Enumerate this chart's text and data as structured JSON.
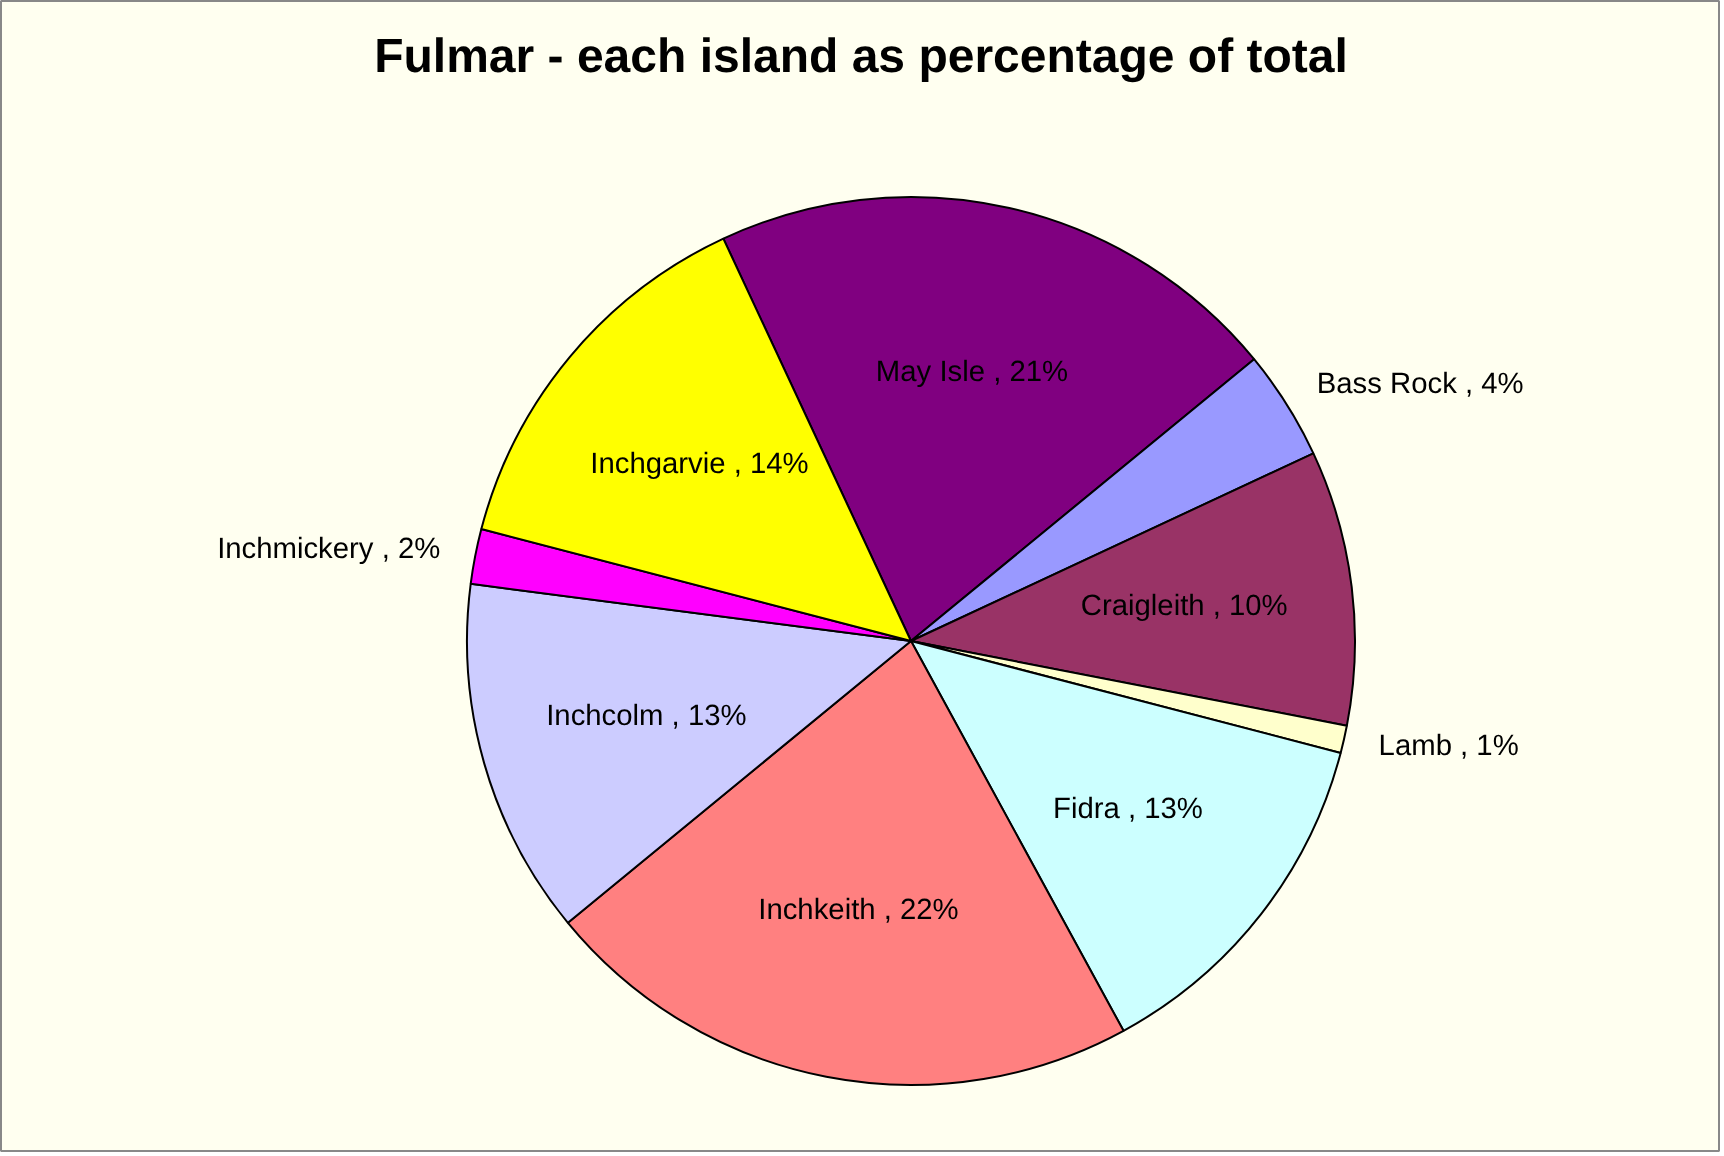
{
  "chart_data": {
    "type": "pie",
    "title": "Fulmar - each island as percentage of total",
    "categories": [
      "May Isle",
      "Bass Rock",
      "Craigleith",
      "Lamb",
      "Fidra",
      "Inchkeith",
      "Inchcolm",
      "Inchmickery",
      "Inchgarvie"
    ],
    "values": [
      21,
      4,
      10,
      1,
      13,
      22,
      13,
      2,
      14
    ],
    "colors": [
      "#800080",
      "#9999ff",
      "#993366",
      "#ffffcc",
      "#ccffff",
      "#ff8080",
      "#ccccff",
      "#ff00ff",
      "#ffff00"
    ],
    "value_labels": [
      "21%",
      "4%",
      "10%",
      "1%",
      "13%",
      "22%",
      "13%",
      "2%",
      "14%"
    ]
  }
}
